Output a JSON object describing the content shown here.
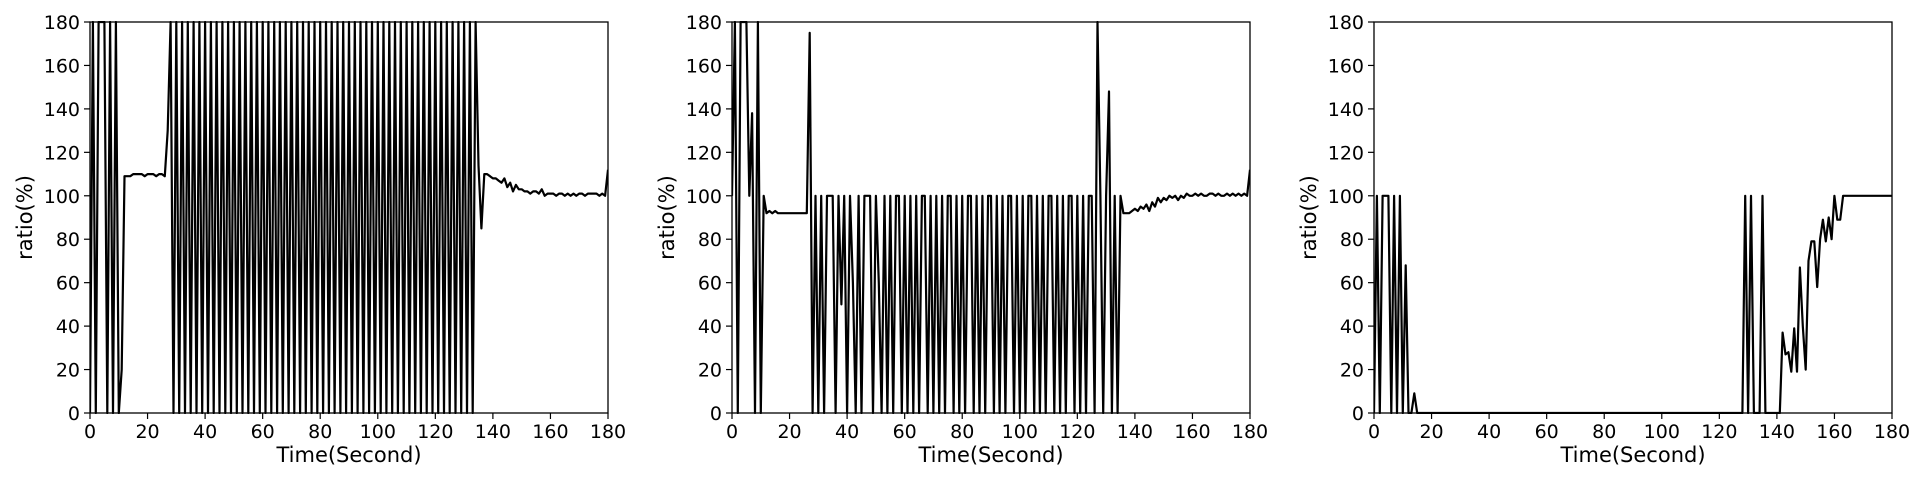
{
  "chart_data": [
    {
      "type": "line",
      "title": "",
      "xlabel": "Time(Second)",
      "ylabel": "ratio(%)",
      "xlim": [
        0,
        180
      ],
      "ylim": [
        0,
        180
      ],
      "xticks": [
        "0",
        "20",
        "40",
        "60",
        "80",
        "100",
        "120",
        "140",
        "160",
        "180"
      ],
      "yticks": [
        "0",
        "20",
        "40",
        "60",
        "80",
        "100",
        "120",
        "140",
        "160",
        "180"
      ],
      "grid": false,
      "color": "#000000",
      "x": [
        0,
        1,
        2,
        3,
        4,
        5,
        6,
        7,
        8,
        9,
        10,
        11,
        12,
        13,
        14,
        15,
        16,
        17,
        18,
        19,
        20,
        21,
        22,
        23,
        24,
        25,
        26,
        27,
        28,
        29,
        30,
        31,
        32,
        33,
        34,
        35,
        36,
        37,
        38,
        39,
        40,
        41,
        42,
        43,
        44,
        45,
        46,
        47,
        48,
        49,
        50,
        51,
        52,
        53,
        54,
        55,
        56,
        57,
        58,
        59,
        60,
        61,
        62,
        63,
        64,
        65,
        66,
        67,
        68,
        69,
        70,
        71,
        72,
        73,
        74,
        75,
        76,
        77,
        78,
        79,
        80,
        81,
        82,
        83,
        84,
        85,
        86,
        87,
        88,
        89,
        90,
        91,
        92,
        93,
        94,
        95,
        96,
        97,
        98,
        99,
        100,
        101,
        102,
        103,
        104,
        105,
        106,
        107,
        108,
        109,
        110,
        111,
        112,
        113,
        114,
        115,
        116,
        117,
        118,
        119,
        120,
        121,
        122,
        123,
        124,
        125,
        126,
        127,
        128,
        129,
        130,
        131,
        132,
        133,
        134,
        135,
        136,
        137,
        138,
        139,
        140,
        141,
        142,
        143,
        144,
        145,
        146,
        147,
        148,
        149,
        150,
        151,
        152,
        153,
        154,
        155,
        156,
        157,
        158,
        159,
        160,
        161,
        162,
        163,
        164,
        165,
        166,
        167,
        168,
        169,
        170,
        171,
        172,
        173,
        174,
        175,
        176,
        177,
        178,
        179,
        180
      ],
      "y": [
        0,
        180,
        0,
        180,
        180,
        180,
        0,
        180,
        0,
        180,
        0,
        20,
        109,
        109,
        109,
        110,
        110,
        110,
        110,
        109,
        110,
        110,
        110,
        109,
        110,
        110,
        109,
        130,
        180,
        0,
        180,
        0,
        180,
        0,
        180,
        0,
        180,
        0,
        180,
        0,
        180,
        0,
        180,
        0,
        180,
        0,
        180,
        0,
        180,
        0,
        180,
        0,
        180,
        0,
        180,
        0,
        180,
        0,
        180,
        0,
        180,
        0,
        180,
        0,
        180,
        0,
        180,
        0,
        180,
        0,
        180,
        0,
        180,
        0,
        180,
        0,
        180,
        0,
        180,
        0,
        180,
        0,
        180,
        0,
        180,
        0,
        180,
        0,
        180,
        0,
        180,
        0,
        180,
        0,
        180,
        0,
        180,
        0,
        180,
        0,
        180,
        0,
        180,
        0,
        180,
        0,
        180,
        0,
        180,
        0,
        180,
        0,
        180,
        0,
        180,
        0,
        180,
        0,
        180,
        0,
        180,
        0,
        180,
        0,
        180,
        0,
        180,
        0,
        180,
        0,
        180,
        0,
        180,
        0,
        180,
        114,
        85,
        110,
        110,
        109,
        108,
        108,
        107,
        106,
        108,
        104,
        106,
        102,
        105,
        103,
        103,
        102,
        102,
        101,
        102,
        102,
        101,
        103,
        100,
        101,
        101,
        101,
        100,
        101,
        101,
        100,
        101,
        100,
        101,
        100,
        101,
        101,
        100,
        101,
        101,
        101,
        101,
        100,
        101,
        100,
        112
      ]
    },
    {
      "type": "line",
      "title": "",
      "xlabel": "Time(Second)",
      "ylabel": "ratio(%)",
      "xlim": [
        0,
        180
      ],
      "ylim": [
        0,
        180
      ],
      "xticks": [
        "0",
        "20",
        "40",
        "60",
        "80",
        "100",
        "120",
        "140",
        "160",
        "180"
      ],
      "yticks": [
        "0",
        "20",
        "40",
        "60",
        "80",
        "100",
        "120",
        "140",
        "160",
        "180"
      ],
      "grid": false,
      "color": "#000000",
      "x": [
        0,
        1,
        2,
        3,
        4,
        5,
        6,
        7,
        8,
        9,
        10,
        11,
        12,
        13,
        14,
        15,
        16,
        17,
        18,
        19,
        20,
        21,
        22,
        23,
        24,
        25,
        26,
        27,
        28,
        29,
        30,
        31,
        32,
        33,
        34,
        35,
        36,
        37,
        38,
        39,
        40,
        41,
        42,
        43,
        44,
        45,
        46,
        47,
        48,
        49,
        50,
        51,
        52,
        53,
        54,
        55,
        56,
        57,
        58,
        59,
        60,
        61,
        62,
        63,
        64,
        65,
        66,
        67,
        68,
        69,
        70,
        71,
        72,
        73,
        74,
        75,
        76,
        77,
        78,
        79,
        80,
        81,
        82,
        83,
        84,
        85,
        86,
        87,
        88,
        89,
        90,
        91,
        92,
        93,
        94,
        95,
        96,
        97,
        98,
        99,
        100,
        101,
        102,
        103,
        104,
        105,
        106,
        107,
        108,
        109,
        110,
        111,
        112,
        113,
        114,
        115,
        116,
        117,
        118,
        119,
        120,
        121,
        122,
        123,
        124,
        125,
        126,
        127,
        128,
        129,
        130,
        131,
        132,
        133,
        134,
        135,
        136,
        137,
        138,
        139,
        140,
        141,
        142,
        143,
        144,
        145,
        146,
        147,
        148,
        149,
        150,
        151,
        152,
        153,
        154,
        155,
        156,
        157,
        158,
        159,
        160,
        161,
        162,
        163,
        164,
        165,
        166,
        167,
        168,
        169,
        170,
        171,
        172,
        173,
        174,
        175,
        176,
        177,
        178,
        179,
        180
      ],
      "y": [
        100,
        180,
        0,
        180,
        180,
        180,
        100,
        138,
        0,
        180,
        0,
        100,
        92,
        93,
        92,
        93,
        92,
        92,
        92,
        92,
        92,
        92,
        92,
        92,
        92,
        92,
        92,
        175,
        0,
        100,
        0,
        100,
        0,
        100,
        100,
        100,
        0,
        100,
        50,
        100,
        0,
        100,
        60,
        0,
        100,
        0,
        100,
        100,
        100,
        0,
        100,
        60,
        0,
        100,
        0,
        100,
        0,
        100,
        100,
        0,
        100,
        0,
        100,
        0,
        100,
        0,
        100,
        100,
        0,
        100,
        0,
        100,
        0,
        100,
        0,
        100,
        100,
        0,
        100,
        0,
        100,
        0,
        100,
        100,
        0,
        100,
        0,
        100,
        0,
        100,
        100,
        0,
        100,
        0,
        100,
        0,
        100,
        100,
        0,
        100,
        0,
        100,
        0,
        100,
        100,
        0,
        100,
        0,
        100,
        0,
        100,
        100,
        0,
        100,
        0,
        100,
        0,
        100,
        100,
        0,
        100,
        0,
        100,
        0,
        100,
        100,
        0,
        180,
        100,
        0,
        100,
        148,
        0,
        100,
        0,
        100,
        92,
        92,
        92,
        93,
        94,
        93,
        95,
        94,
        96,
        93,
        97,
        95,
        99,
        97,
        99,
        98,
        100,
        99,
        100,
        98,
        100,
        99,
        101,
        100,
        100,
        101,
        100,
        101,
        100,
        100,
        101,
        101,
        100,
        101,
        100,
        100,
        101,
        100,
        101,
        100,
        101,
        100,
        101,
        100,
        112
      ]
    },
    {
      "type": "line",
      "title": "",
      "xlabel": "Time(Second)",
      "ylabel": "ratio(%)",
      "xlim": [
        0,
        180
      ],
      "ylim": [
        0,
        180
      ],
      "xticks": [
        "0",
        "20",
        "40",
        "60",
        "80",
        "100",
        "120",
        "140",
        "160",
        "180"
      ],
      "yticks": [
        "0",
        "20",
        "40",
        "60",
        "80",
        "100",
        "120",
        "140",
        "160",
        "180"
      ],
      "grid": false,
      "color": "#000000",
      "x": [
        0,
        1,
        2,
        3,
        4,
        5,
        6,
        7,
        8,
        9,
        10,
        11,
        12,
        13,
        14,
        15,
        16,
        17,
        18,
        19,
        20,
        30,
        40,
        50,
        60,
        70,
        80,
        90,
        100,
        110,
        120,
        127,
        128,
        129,
        130,
        131,
        132,
        133,
        134,
        135,
        136,
        137,
        138,
        139,
        140,
        141,
        142,
        143,
        144,
        145,
        146,
        147,
        148,
        149,
        150,
        151,
        152,
        153,
        154,
        155,
        156,
        157,
        158,
        159,
        160,
        161,
        162,
        163,
        164,
        165,
        166,
        167,
        168,
        169,
        170,
        171,
        172,
        173,
        174,
        175,
        176,
        177,
        178,
        179,
        180
      ],
      "y": [
        0,
        100,
        0,
        100,
        100,
        100,
        0,
        100,
        0,
        100,
        0,
        68,
        0,
        0,
        9,
        0,
        0,
        0,
        0,
        0,
        0,
        0,
        0,
        0,
        0,
        0,
        0,
        0,
        0,
        0,
        0,
        0,
        0,
        100,
        0,
        100,
        0,
        0,
        0,
        100,
        0,
        0,
        0,
        0,
        0,
        0,
        37,
        27,
        28,
        19,
        39,
        19,
        67,
        40,
        20,
        70,
        79,
        79,
        58,
        80,
        89,
        79,
        90,
        80,
        100,
        89,
        89,
        100,
        100,
        100,
        100,
        100,
        100,
        100,
        100,
        100,
        100,
        100,
        100,
        100,
        100,
        100,
        100,
        100,
        100
      ]
    }
  ]
}
